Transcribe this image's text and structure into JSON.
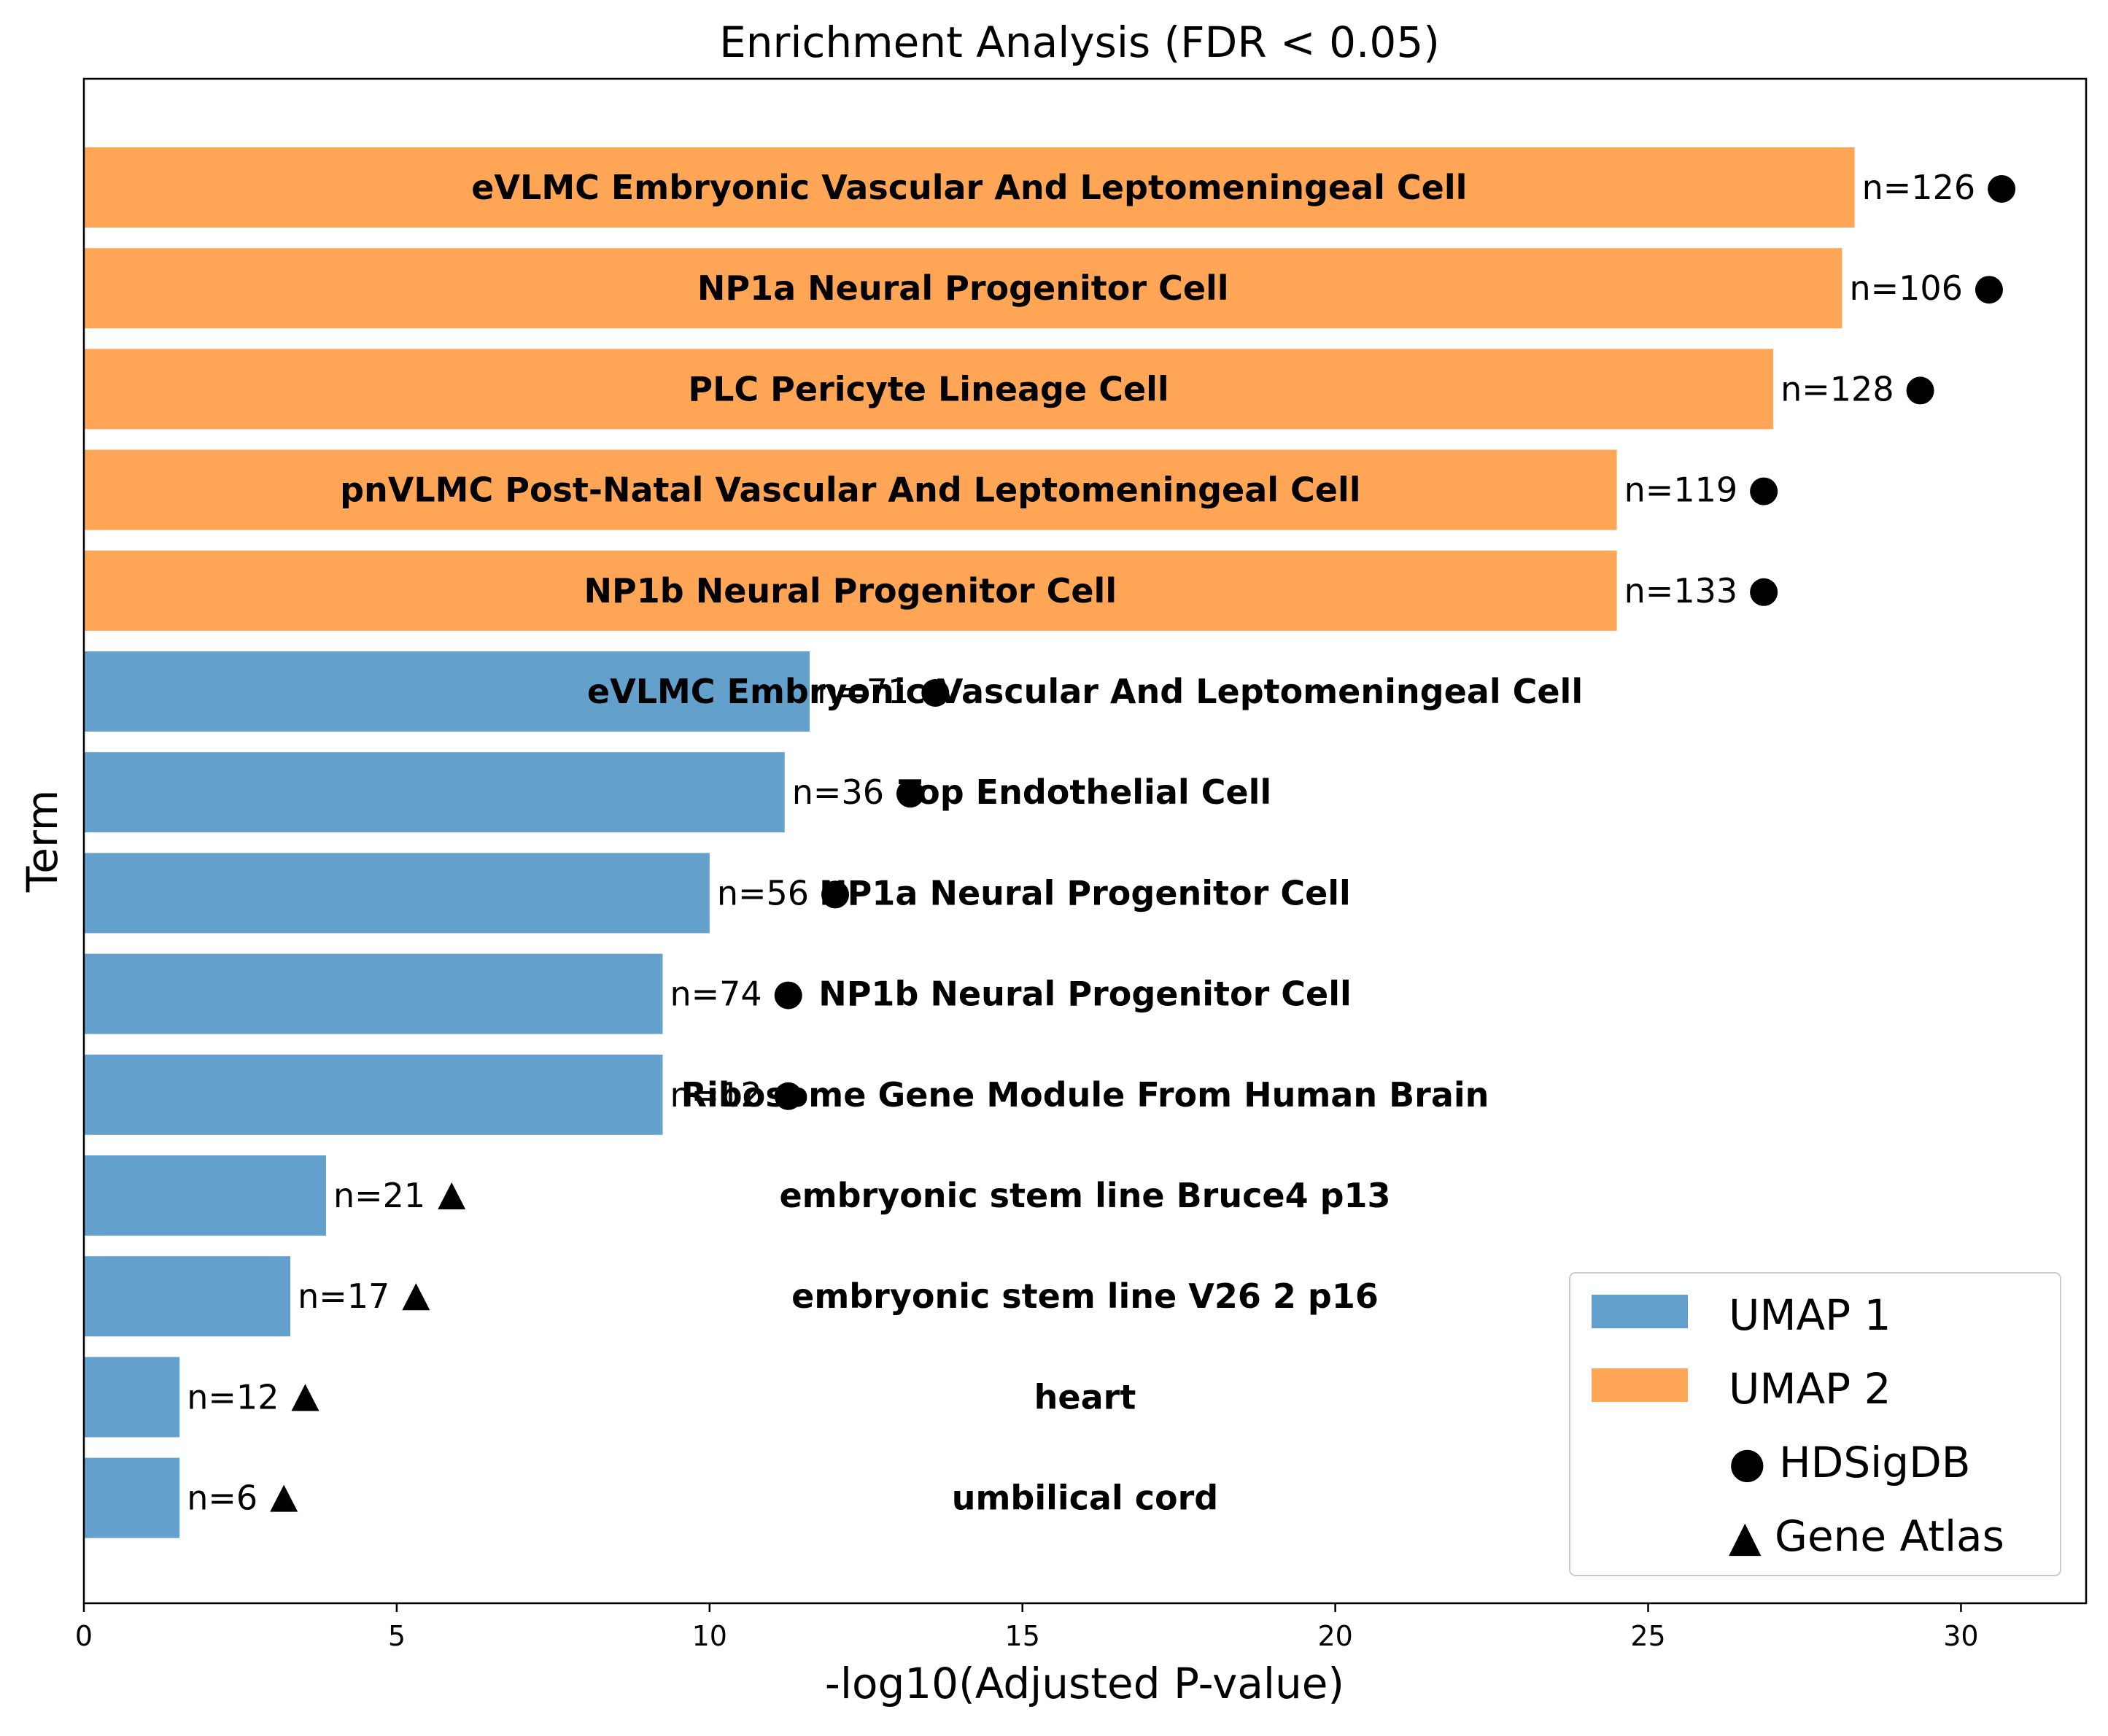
{
  "chart_data": {
    "type": "bar",
    "orientation": "horizontal",
    "title": "Enrichment Analysis (FDR < 0.05)",
    "xlabel": "-log10(Adjusted P-value)",
    "ylabel": "Term",
    "xlim": [
      0,
      32
    ],
    "xticks": [
      0,
      5,
      10,
      15,
      20,
      25,
      30
    ],
    "grid": false,
    "legend_placement": "bottom-right",
    "colors": {
      "UMAP 1": "#64a0cc",
      "UMAP 2": "#fea556"
    },
    "legend": [
      {
        "label": "UMAP 1",
        "kind": "patch",
        "color": "#64a0cc"
      },
      {
        "label": "UMAP 2",
        "kind": "patch",
        "color": "#fea556"
      },
      {
        "label": "HDSigDB",
        "kind": "marker",
        "symbol": "●"
      },
      {
        "label": "Gene Atlas",
        "kind": "marker",
        "symbol": "▲"
      }
    ],
    "bars": [
      {
        "term": "eVLMC Embryonic Vascular And Leptomeningeal Cell",
        "series": "UMAP 2",
        "value": 28.3,
        "count": "n=126",
        "source": "HDSigDB"
      },
      {
        "term": "NP1a Neural Progenitor Cell",
        "series": "UMAP 2",
        "value": 28.1,
        "count": "n=106",
        "source": "HDSigDB"
      },
      {
        "term": "PLC Pericyte Lineage Cell",
        "series": "UMAP 2",
        "value": 27.0,
        "count": "n=128",
        "source": "HDSigDB"
      },
      {
        "term": "pnVLMC Post-Natal Vascular And Leptomeningeal Cell",
        "series": "UMAP 2",
        "value": 24.5,
        "count": "n=119",
        "source": "HDSigDB"
      },
      {
        "term": "NP1b Neural Progenitor Cell",
        "series": "UMAP 2",
        "value": 24.5,
        "count": "n=133",
        "source": "HDSigDB"
      },
      {
        "term": "eVLMC Embryonic Vascular And Leptomeningeal Cell",
        "series": "UMAP 1",
        "value": 11.6,
        "count": "n=71",
        "source": "HDSigDB"
      },
      {
        "term": "Top Endothelial Cell",
        "series": "UMAP 1",
        "value": 11.2,
        "count": "n=36",
        "source": "HDSigDB"
      },
      {
        "term": "NP1a Neural Progenitor Cell",
        "series": "UMAP 1",
        "value": 10.0,
        "count": "n=56",
        "source": "HDSigDB"
      },
      {
        "term": "NP1b Neural Progenitor Cell",
        "series": "UMAP 1",
        "value": 9.25,
        "count": "n=74",
        "source": "HDSigDB"
      },
      {
        "term": "Ribosome Gene Module From Human Brain",
        "series": "UMAP 1",
        "value": 9.25,
        "count": "n=12",
        "source": "HDSigDB"
      },
      {
        "term": "embryonic stem line Bruce4 p13",
        "series": "UMAP 1",
        "value": 3.87,
        "count": "n=21",
        "source": "Gene Atlas"
      },
      {
        "term": "embryonic stem line V26 2 p16",
        "series": "UMAP 1",
        "value": 3.3,
        "count": "n=17",
        "source": "Gene Atlas"
      },
      {
        "term": "heart",
        "series": "UMAP 1",
        "value": 1.53,
        "count": "n=12",
        "source": "Gene Atlas"
      },
      {
        "term": "umbilical cord",
        "series": "UMAP 1",
        "value": 1.53,
        "count": "n=6",
        "source": "Gene Atlas"
      }
    ]
  }
}
